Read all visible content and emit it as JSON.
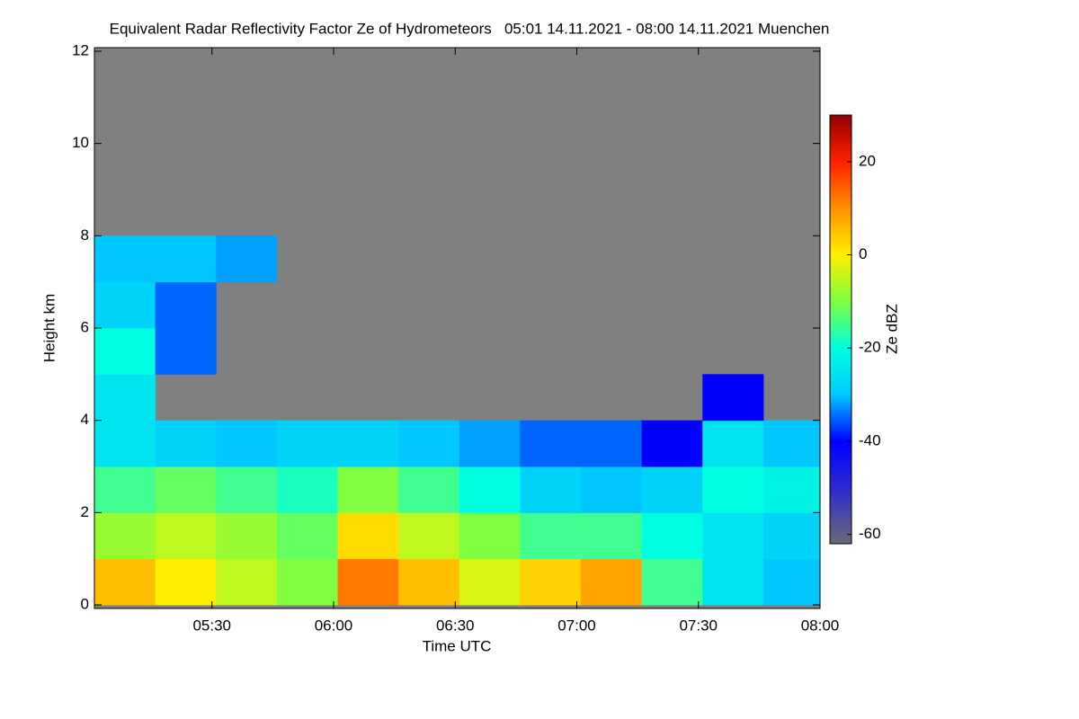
{
  "chart_data": {
    "type": "heatmap",
    "title": "Equivalent Radar Reflectivity Factor Ze of Hydrometeors   05:01 14.11.2021 - 08:00 14.11.2021 Muenchen",
    "x_label": "Time UTC",
    "y_label": "Height km",
    "colorbar_label": "Ze dBZ",
    "xlim": [
      301,
      480
    ],
    "xticks": [
      {
        "value": 330,
        "label": "05:30"
      },
      {
        "value": 360,
        "label": "06:00"
      },
      {
        "value": 390,
        "label": "06:30"
      },
      {
        "value": 420,
        "label": "07:00"
      },
      {
        "value": 450,
        "label": "07:30"
      },
      {
        "value": 480,
        "label": "08:00"
      }
    ],
    "ylim": [
      0,
      12
    ],
    "yticks": [
      0,
      2,
      4,
      6,
      8,
      10,
      12
    ],
    "clim": [
      -62,
      30
    ],
    "cticks": [
      -60,
      -40,
      -20,
      0,
      20
    ],
    "colormap": [
      {
        "value": -62,
        "color": "#6a6a78"
      },
      {
        "value": -50,
        "color": "#2a2ad0"
      },
      {
        "value": -40,
        "color": "#0000ff"
      },
      {
        "value": -30,
        "color": "#00c8ff"
      },
      {
        "value": -20,
        "color": "#00ffe0"
      },
      {
        "value": -10,
        "color": "#7fff40"
      },
      {
        "value": 0,
        "color": "#ffee00"
      },
      {
        "value": 10,
        "color": "#ff9000"
      },
      {
        "value": 20,
        "color": "#ff2000"
      },
      {
        "value": 30,
        "color": "#900000"
      }
    ],
    "missing_color": "#808080",
    "xbins": [
      301,
      316,
      331,
      346,
      361,
      376,
      391,
      406,
      421,
      436,
      451,
      466,
      480
    ],
    "ybins": [
      0,
      1,
      2,
      3,
      4,
      5,
      6,
      7,
      8,
      9,
      10,
      11,
      12
    ],
    "values": [
      [
        5,
        0,
        -5,
        -10,
        12,
        5,
        -3,
        3,
        8,
        -15,
        -25,
        -30
      ],
      [
        -8,
        -5,
        -8,
        -12,
        2,
        -5,
        -10,
        -15,
        -15,
        -20,
        -25,
        -28
      ],
      [
        -15,
        -12,
        -15,
        -18,
        -10,
        -15,
        -20,
        -28,
        -30,
        -28,
        -20,
        -22
      ],
      [
        -25,
        -28,
        -30,
        -28,
        -28,
        -30,
        -32,
        -35,
        -35,
        -40,
        -25,
        -30
      ],
      [
        -25,
        null,
        null,
        null,
        null,
        null,
        null,
        null,
        null,
        null,
        -40,
        null
      ],
      [
        -20,
        -35,
        null,
        null,
        null,
        null,
        null,
        null,
        null,
        null,
        null,
        null
      ],
      [
        -28,
        -35,
        null,
        null,
        null,
        null,
        null,
        null,
        null,
        null,
        null,
        null
      ],
      [
        -30,
        -30,
        -32,
        null,
        null,
        null,
        null,
        null,
        null,
        null,
        null,
        null
      ],
      [
        null,
        null,
        null,
        null,
        null,
        null,
        null,
        null,
        null,
        null,
        null,
        null
      ],
      [
        null,
        null,
        null,
        null,
        null,
        null,
        null,
        null,
        null,
        null,
        null,
        null
      ],
      [
        null,
        null,
        null,
        null,
        null,
        null,
        null,
        null,
        null,
        null,
        null,
        null
      ],
      [
        null,
        null,
        null,
        null,
        null,
        null,
        null,
        null,
        null,
        null,
        null,
        null
      ]
    ]
  }
}
